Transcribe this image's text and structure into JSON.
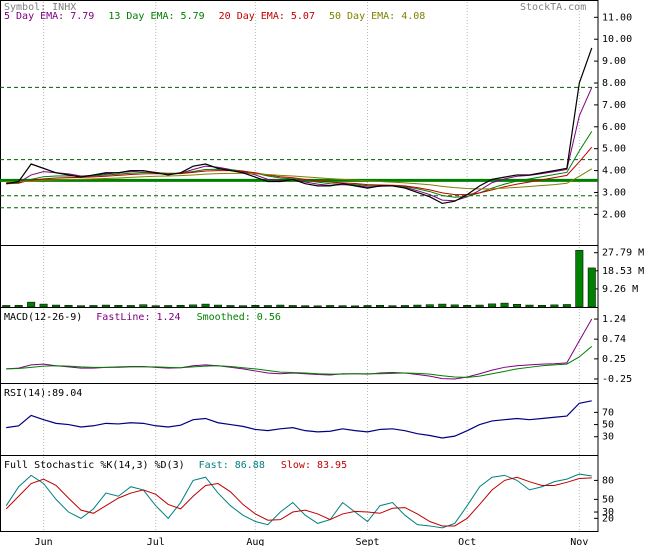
{
  "chart_data": [
    {
      "type": "line",
      "title": "Symbol: INHX",
      "watermark": "StockTA.com",
      "values": [
        3.4,
        3.5,
        4.3,
        4.1,
        3.9,
        3.8,
        3.7,
        3.8,
        3.9,
        3.9,
        4.0,
        4.0,
        3.9,
        3.8,
        3.9,
        4.2,
        4.3,
        4.1,
        4.0,
        3.9,
        3.7,
        3.5,
        3.5,
        3.6,
        3.4,
        3.3,
        3.3,
        3.4,
        3.3,
        3.2,
        3.3,
        3.3,
        3.2,
        3.0,
        2.8,
        2.5,
        2.6,
        2.9,
        3.3,
        3.6,
        3.7,
        3.8,
        3.8,
        3.9,
        4.0,
        4.1,
        8.0,
        9.6
      ],
      "color": "#000000",
      "series": [
        {
          "name": "5 Day EMA: 7.79",
          "color": "#800080",
          "values": [
            3.4,
            3.45,
            3.8,
            3.95,
            3.9,
            3.85,
            3.75,
            3.78,
            3.85,
            3.9,
            3.95,
            3.98,
            3.92,
            3.85,
            3.88,
            4.05,
            4.2,
            4.15,
            4.05,
            3.95,
            3.8,
            3.6,
            3.55,
            3.58,
            3.48,
            3.38,
            3.32,
            3.36,
            3.32,
            3.25,
            3.28,
            3.3,
            3.24,
            3.08,
            2.9,
            2.65,
            2.62,
            2.8,
            3.1,
            3.45,
            3.62,
            3.74,
            3.78,
            3.86,
            3.95,
            4.05,
            6.5,
            7.79
          ]
        },
        {
          "name": "13 Day EMA: 5.79",
          "color": "#008000",
          "values": [
            3.4,
            3.42,
            3.6,
            3.72,
            3.75,
            3.76,
            3.74,
            3.76,
            3.8,
            3.84,
            3.88,
            3.92,
            3.9,
            3.88,
            3.88,
            3.96,
            4.05,
            4.06,
            4.04,
            3.98,
            3.88,
            3.75,
            3.66,
            3.62,
            3.55,
            3.47,
            3.4,
            3.39,
            3.36,
            3.31,
            3.3,
            3.3,
            3.27,
            3.17,
            3.04,
            2.86,
            2.78,
            2.82,
            2.98,
            3.2,
            3.38,
            3.52,
            3.62,
            3.72,
            3.82,
            3.92,
            4.9,
            5.79
          ]
        },
        {
          "name": "20 Day EMA: 5.07",
          "color": "#c00000",
          "values": [
            3.45,
            3.45,
            3.55,
            3.62,
            3.66,
            3.68,
            3.69,
            3.71,
            3.74,
            3.78,
            3.82,
            3.85,
            3.86,
            3.85,
            3.86,
            3.92,
            3.98,
            4.0,
            4.0,
            3.97,
            3.9,
            3.8,
            3.72,
            3.67,
            3.6,
            3.53,
            3.47,
            3.44,
            3.41,
            3.36,
            3.34,
            3.33,
            3.3,
            3.22,
            3.12,
            2.98,
            2.9,
            2.9,
            2.98,
            3.12,
            3.26,
            3.38,
            3.48,
            3.58,
            3.68,
            3.78,
            4.4,
            5.07
          ]
        },
        {
          "name": "50 Day EMA: 4.08",
          "color": "#808000",
          "values": [
            3.5,
            3.5,
            3.52,
            3.55,
            3.57,
            3.59,
            3.6,
            3.62,
            3.64,
            3.66,
            3.69,
            3.72,
            3.74,
            3.75,
            3.77,
            3.8,
            3.84,
            3.86,
            3.87,
            3.87,
            3.85,
            3.82,
            3.78,
            3.75,
            3.71,
            3.67,
            3.63,
            3.6,
            3.57,
            3.53,
            3.5,
            3.47,
            3.44,
            3.4,
            3.35,
            3.28,
            3.22,
            3.18,
            3.16,
            3.17,
            3.2,
            3.23,
            3.27,
            3.32,
            3.36,
            3.42,
            3.74,
            4.08
          ]
        }
      ],
      "hlines": [
        7.8,
        4.5,
        2.85,
        2.3
      ],
      "support": 3.55,
      "ylim": [
        0.6,
        11.7
      ],
      "yticks": [
        {
          "value": 11,
          "label": "11.00"
        },
        {
          "value": 10,
          "label": "10.00"
        },
        {
          "value": 9,
          "label": "9.00"
        },
        {
          "value": 8,
          "label": "8.00"
        },
        {
          "value": 7,
          "label": "7.00"
        },
        {
          "value": 6,
          "label": "6.00"
        },
        {
          "value": 5,
          "label": "5.00"
        },
        {
          "value": 4,
          "label": "4.00"
        },
        {
          "value": 3,
          "label": "3.00"
        },
        {
          "value": 2,
          "label": "2.00"
        }
      ]
    },
    {
      "type": "bar",
      "color": "#008000",
      "values": [
        0.8,
        0.9,
        2.5,
        1.5,
        1.0,
        0.9,
        0.7,
        0.8,
        1.0,
        0.9,
        0.8,
        1.2,
        0.7,
        0.8,
        0.9,
        1.1,
        1.5,
        1.0,
        0.8,
        0.7,
        0.9,
        0.8,
        1.0,
        0.8,
        0.7,
        0.6,
        0.8,
        0.7,
        0.6,
        0.8,
        0.9,
        0.7,
        0.8,
        1.0,
        1.2,
        1.5,
        1.1,
        0.9,
        1.0,
        1.6,
        2.0,
        1.4,
        1.0,
        0.9,
        1.1,
        1.3,
        29.0,
        20.0
      ],
      "ylim": [
        0,
        30.7
      ],
      "yticks": [
        {
          "value": 27.79,
          "label": "27.79 M"
        },
        {
          "value": 18.53,
          "label": "18.53 M"
        },
        {
          "value": 9.26,
          "label": "9.26 M"
        }
      ]
    },
    {
      "type": "line",
      "title": "MACD(12-26-9)",
      "series": [
        {
          "name": "FastLine: 1.24",
          "color": "#800080",
          "values": [
            0,
            0.02,
            0.1,
            0.12,
            0.08,
            0.05,
            0.02,
            0.02,
            0.04,
            0.05,
            0.06,
            0.06,
            0.04,
            0.02,
            0.03,
            0.08,
            0.1,
            0.08,
            0.04,
            0,
            -0.05,
            -0.1,
            -0.12,
            -0.1,
            -0.12,
            -0.14,
            -0.15,
            -0.12,
            -0.12,
            -0.13,
            -0.1,
            -0.09,
            -0.1,
            -0.14,
            -0.18,
            -0.24,
            -0.25,
            -0.2,
            -0.12,
            -0.03,
            0.04,
            0.08,
            0.1,
            0.12,
            0.13,
            0.15,
            0.7,
            1.24
          ]
        },
        {
          "name": "Smoothed: 0.56",
          "color": "#008000",
          "values": [
            0,
            0.01,
            0.04,
            0.07,
            0.08,
            0.07,
            0.05,
            0.04,
            0.04,
            0.04,
            0.05,
            0.05,
            0.05,
            0.04,
            0.03,
            0.05,
            0.07,
            0.08,
            0.06,
            0.03,
            0,
            -0.04,
            -0.08,
            -0.09,
            -0.1,
            -0.12,
            -0.13,
            -0.13,
            -0.12,
            -0.12,
            -0.12,
            -0.11,
            -0.1,
            -0.11,
            -0.13,
            -0.17,
            -0.2,
            -0.21,
            -0.18,
            -0.12,
            -0.06,
            0,
            0.04,
            0.08,
            0.1,
            0.12,
            0.3,
            0.56
          ]
        }
      ],
      "ylim": [
        -0.35,
        1.49
      ],
      "yticks": [
        1.24,
        0.74,
        0.25,
        -0.25
      ]
    },
    {
      "type": "line",
      "title": "RSI(14):89.04",
      "color": "#000080",
      "values": [
        45,
        48,
        65,
        58,
        52,
        50,
        46,
        48,
        52,
        51,
        53,
        52,
        48,
        46,
        49,
        58,
        60,
        53,
        50,
        47,
        42,
        40,
        43,
        45,
        40,
        38,
        39,
        43,
        40,
        38,
        42,
        43,
        40,
        35,
        32,
        28,
        31,
        40,
        50,
        56,
        58,
        60,
        58,
        60,
        62,
        64,
        85,
        89.04
      ],
      "ylim": [
        0,
        115
      ],
      "yticks": [
        70,
        50,
        30
      ]
    },
    {
      "type": "line",
      "title": "Full Stochastic %K(14,3) %D(3)",
      "series": [
        {
          "name": "Fast: 86.88",
          "color": "#008080",
          "values": [
            40,
            70,
            88,
            75,
            50,
            30,
            20,
            35,
            60,
            55,
            70,
            65,
            40,
            20,
            45,
            80,
            85,
            60,
            40,
            25,
            15,
            10,
            30,
            45,
            25,
            12,
            18,
            45,
            30,
            15,
            40,
            45,
            25,
            10,
            8,
            5,
            12,
            40,
            70,
            85,
            88,
            80,
            65,
            70,
            78,
            82,
            90,
            86.88
          ]
        },
        {
          "name": "Slow: 83.95",
          "color": "#c00000",
          "values": [
            35,
            55,
            75,
            82,
            72,
            52,
            33,
            28,
            40,
            52,
            60,
            65,
            58,
            42,
            35,
            55,
            72,
            75,
            62,
            42,
            27,
            17,
            18,
            30,
            33,
            27,
            18,
            27,
            31,
            30,
            28,
            36,
            37,
            27,
            15,
            8,
            8,
            20,
            42,
            65,
            80,
            85,
            78,
            72,
            72,
            77,
            83,
            83.95
          ]
        }
      ],
      "ylim": [
        0,
        117
      ],
      "yticks": [
        80,
        50,
        30,
        20
      ],
      "categories": [
        null,
        null,
        null,
        "Jun",
        null,
        null,
        null,
        null,
        null,
        null,
        null,
        null,
        "Jul",
        null,
        null,
        null,
        null,
        null,
        null,
        null,
        "Aug",
        null,
        null,
        null,
        null,
        null,
        null,
        null,
        null,
        "Sept",
        null,
        null,
        null,
        null,
        null,
        null,
        null,
        "Oct",
        null,
        null,
        null,
        null,
        null,
        null,
        null,
        null,
        "Nov",
        null
      ]
    }
  ]
}
